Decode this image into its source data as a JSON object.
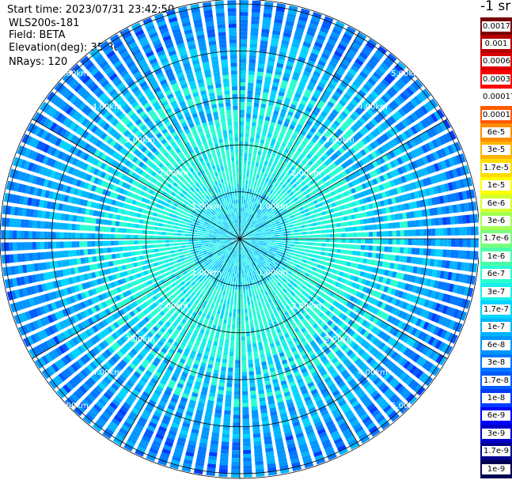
{
  "header": {
    "start_time": "Start time: 2023/07/31 23:42:50",
    "instrument": "WLS200s-181",
    "field": "Field: BETA",
    "elevation": "Elevation(deg): 35.30",
    "nrays": "NRays: 120"
  },
  "colorbar": {
    "title": "-1 sr",
    "levels": [
      {
        "label": "0.0017",
        "color": "#7a0000"
      },
      {
        "label": "0.001",
        "color": "#b40000"
      },
      {
        "label": "0.0006",
        "color": "#dc0000"
      },
      {
        "label": "0.0003",
        "color": "#ff0000"
      },
      {
        "label": "0.00017",
        "color": "#ffffff"
      },
      {
        "label": "0.0001",
        "color": "#ff5a00"
      },
      {
        "label": "6e-5",
        "color": "#ff8c00"
      },
      {
        "label": "3e-5",
        "color": "#ffb400"
      },
      {
        "label": "1.7e-5",
        "color": "#ffdc00"
      },
      {
        "label": "1e-5",
        "color": "#ffff00"
      },
      {
        "label": "6e-6",
        "color": "#d2ff2a"
      },
      {
        "label": "3e-6",
        "color": "#a5ff55"
      },
      {
        "label": "1.7e-6",
        "color": "#78ff7f"
      },
      {
        "label": "1e-6",
        "color": "#4bffaa"
      },
      {
        "label": "6e-7",
        "color": "#2affd2"
      },
      {
        "label": "3e-7",
        "color": "#18f0ea"
      },
      {
        "label": "1.7e-7",
        "color": "#00d4ff"
      },
      {
        "label": "1e-7",
        "color": "#00b4ff"
      },
      {
        "label": "6e-8",
        "color": "#0096ff"
      },
      {
        "label": "3e-8",
        "color": "#0078ff"
      },
      {
        "label": "1.7e-8",
        "color": "#005aff"
      },
      {
        "label": "1e-8",
        "color": "#003cff"
      },
      {
        "label": "6e-9",
        "color": "#0000ff"
      },
      {
        "label": "3e-9",
        "color": "#0000c8"
      },
      {
        "label": "1.7e-9",
        "color": "#00008c"
      },
      {
        "label": "1e-9",
        "color": "#000050"
      }
    ]
  },
  "chart_data": {
    "type": "heatmap",
    "projection": "polar (PPI scan)",
    "field": "BETA",
    "elevation_deg": 35.3,
    "n_rays": 120,
    "range_rings_km": [
      1,
      2,
      3,
      4,
      5
    ],
    "range_ring_labels": [
      "1.00km",
      "2.00km",
      "3.00km",
      "4.00km",
      "5.00km"
    ],
    "max_range_km": 5.1,
    "azimuth_spokes_deg": [
      0,
      30,
      60,
      90,
      120,
      150,
      180,
      210,
      240,
      270,
      300,
      330
    ],
    "value_pattern": "mostly 1e-7 to 6e-8 sr-1 with 3e-7 near center, decreasing to 1e-8 at far range",
    "grid": true
  }
}
